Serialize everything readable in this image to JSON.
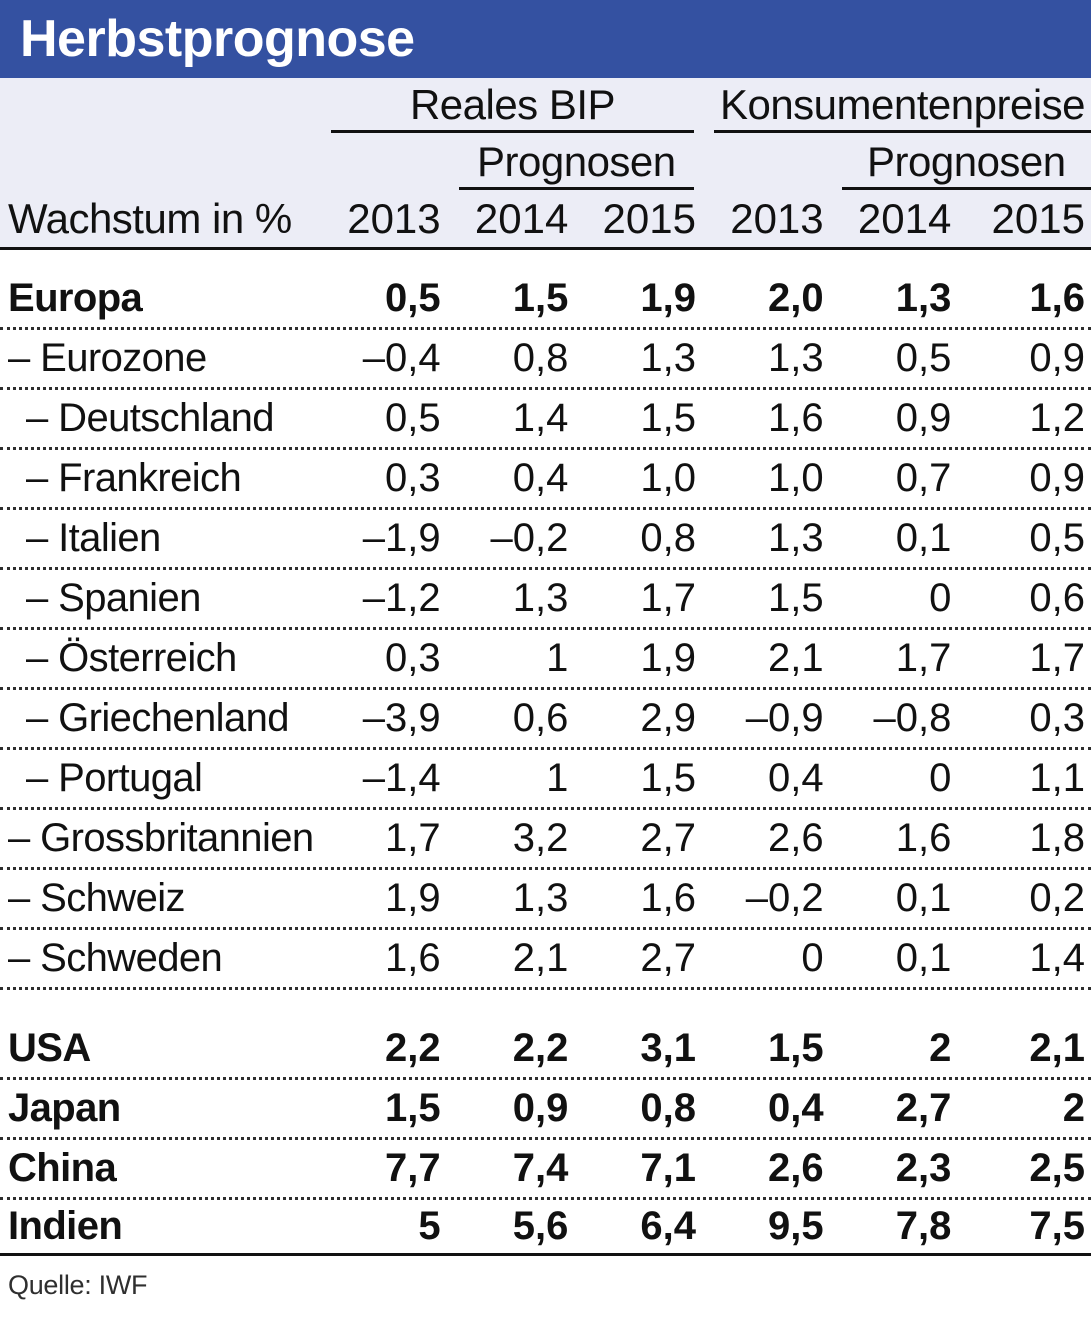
{
  "title": "Herbstprognose",
  "source": "Quelle: IWF",
  "colors": {
    "accent_blue": "#3451A1",
    "header_bg": "#ECEDF6",
    "text": "#111111"
  },
  "header": {
    "row_label": "Wachstum in %",
    "groups": [
      {
        "label": "Reales BIP",
        "sub": "Prognosen",
        "years": [
          "2013",
          "2014",
          "2015"
        ]
      },
      {
        "label": "Konsumentenpreise",
        "sub": "Prognosen",
        "years": [
          "2013",
          "2014",
          "2015"
        ]
      }
    ]
  },
  "rows": [
    {
      "label": "Europa",
      "level": 0,
      "bold": true,
      "spacer_before": false,
      "values": [
        "0,5",
        "1,5",
        "1,9",
        "2,0",
        "1,3",
        "1,6"
      ]
    },
    {
      "label": "– Eurozone",
      "level": 1,
      "bold": false,
      "spacer_before": false,
      "values": [
        "–0,4",
        "0,8",
        "1,3",
        "1,3",
        "0,5",
        "0,9"
      ]
    },
    {
      "label": "– Deutschland",
      "level": 2,
      "bold": false,
      "spacer_before": false,
      "values": [
        "0,5",
        "1,4",
        "1,5",
        "1,6",
        "0,9",
        "1,2"
      ]
    },
    {
      "label": "– Frankreich",
      "level": 2,
      "bold": false,
      "spacer_before": false,
      "values": [
        "0,3",
        "0,4",
        "1,0",
        "1,0",
        "0,7",
        "0,9"
      ]
    },
    {
      "label": "– Italien",
      "level": 2,
      "bold": false,
      "spacer_before": false,
      "values": [
        "–1,9",
        "–0,2",
        "0,8",
        "1,3",
        "0,1",
        "0,5"
      ]
    },
    {
      "label": "– Spanien",
      "level": 2,
      "bold": false,
      "spacer_before": false,
      "values": [
        "–1,2",
        "1,3",
        "1,7",
        "1,5",
        "0",
        "0,6"
      ]
    },
    {
      "label": "– Österreich",
      "level": 2,
      "bold": false,
      "spacer_before": false,
      "values": [
        "0,3",
        "1",
        "1,9",
        "2,1",
        "1,7",
        "1,7"
      ]
    },
    {
      "label": "– Griechenland",
      "level": 2,
      "bold": false,
      "spacer_before": false,
      "values": [
        "–3,9",
        "0,6",
        "2,9",
        "–0,9",
        "–0,8",
        "0,3"
      ]
    },
    {
      "label": "– Portugal",
      "level": 2,
      "bold": false,
      "spacer_before": false,
      "values": [
        "–1,4",
        "1",
        "1,5",
        "0,4",
        "0",
        "1,1"
      ]
    },
    {
      "label": "– Grossbritannien",
      "level": 1,
      "bold": false,
      "spacer_before": false,
      "values": [
        "1,7",
        "3,2",
        "2,7",
        "2,6",
        "1,6",
        "1,8"
      ]
    },
    {
      "label": "– Schweiz",
      "level": 1,
      "bold": false,
      "spacer_before": false,
      "values": [
        "1,9",
        "1,3",
        "1,6",
        "–0,2",
        "0,1",
        "0,2"
      ]
    },
    {
      "label": "– Schweden",
      "level": 1,
      "bold": false,
      "spacer_before": false,
      "values": [
        "1,6",
        "2,1",
        "2,7",
        "0",
        "0,1",
        "1,4"
      ]
    },
    {
      "label": "USA",
      "level": 0,
      "bold": true,
      "spacer_before": true,
      "values": [
        "2,2",
        "2,2",
        "3,1",
        "1,5",
        "2",
        "2,1"
      ]
    },
    {
      "label": "Japan",
      "level": 0,
      "bold": true,
      "spacer_before": false,
      "values": [
        "1,5",
        "0,9",
        "0,8",
        "0,4",
        "2,7",
        "2"
      ]
    },
    {
      "label": "China",
      "level": 0,
      "bold": true,
      "spacer_before": false,
      "values": [
        "7,7",
        "7,4",
        "7,1",
        "2,6",
        "2,3",
        "2,5"
      ]
    },
    {
      "label": "Indien",
      "level": 0,
      "bold": true,
      "spacer_before": false,
      "values": [
        "5",
        "5,6",
        "6,4",
        "9,5",
        "7,8",
        "7,5"
      ]
    }
  ],
  "chart_data": {
    "type": "table",
    "title": "Herbstprognose",
    "unit": "Wachstum in %",
    "column_groups": [
      {
        "name": "Reales BIP",
        "forecast_label": "Prognosen",
        "forecast_years": [
          "2014",
          "2015"
        ]
      },
      {
        "name": "Konsumentenpreise",
        "forecast_label": "Prognosen",
        "forecast_years": [
          "2014",
          "2015"
        ]
      }
    ],
    "columns": [
      "Reales BIP 2013",
      "Reales BIP 2014 Prognose",
      "Reales BIP 2015 Prognose",
      "Konsumentenpreise 2013",
      "Konsumentenpreise 2014 Prognose",
      "Konsumentenpreise 2015 Prognose"
    ],
    "rows": [
      {
        "label": "Europa",
        "values": [
          0.5,
          1.5,
          1.9,
          2.0,
          1.3,
          1.6
        ]
      },
      {
        "label": "Eurozone",
        "values": [
          -0.4,
          0.8,
          1.3,
          1.3,
          0.5,
          0.9
        ]
      },
      {
        "label": "Deutschland",
        "values": [
          0.5,
          1.4,
          1.5,
          1.6,
          0.9,
          1.2
        ]
      },
      {
        "label": "Frankreich",
        "values": [
          0.3,
          0.4,
          1.0,
          1.0,
          0.7,
          0.9
        ]
      },
      {
        "label": "Italien",
        "values": [
          -1.9,
          -0.2,
          0.8,
          1.3,
          0.1,
          0.5
        ]
      },
      {
        "label": "Spanien",
        "values": [
          -1.2,
          1.3,
          1.7,
          1.5,
          0,
          0.6
        ]
      },
      {
        "label": "Österreich",
        "values": [
          0.3,
          1,
          1.9,
          2.1,
          1.7,
          1.7
        ]
      },
      {
        "label": "Griechenland",
        "values": [
          -3.9,
          0.6,
          2.9,
          -0.9,
          -0.8,
          0.3
        ]
      },
      {
        "label": "Portugal",
        "values": [
          -1.4,
          1,
          1.5,
          0.4,
          0,
          1.1
        ]
      },
      {
        "label": "Grossbritannien",
        "values": [
          1.7,
          3.2,
          2.7,
          2.6,
          1.6,
          1.8
        ]
      },
      {
        "label": "Schweiz",
        "values": [
          1.9,
          1.3,
          1.6,
          -0.2,
          0.1,
          0.2
        ]
      },
      {
        "label": "Schweden",
        "values": [
          1.6,
          2.1,
          2.7,
          0,
          0.1,
          1.4
        ]
      },
      {
        "label": "USA",
        "values": [
          2.2,
          2.2,
          3.1,
          1.5,
          2,
          2.1
        ]
      },
      {
        "label": "Japan",
        "values": [
          1.5,
          0.9,
          0.8,
          0.4,
          2.7,
          2
        ]
      },
      {
        "label": "China",
        "values": [
          7.7,
          7.4,
          7.1,
          2.6,
          2.3,
          2.5
        ]
      },
      {
        "label": "Indien",
        "values": [
          5,
          5.6,
          6.4,
          9.5,
          7.8,
          7.5
        ]
      }
    ],
    "source": "Quelle: IWF",
    "layout": {
      "grid": "dotted row separators",
      "legend_position": "none"
    }
  }
}
